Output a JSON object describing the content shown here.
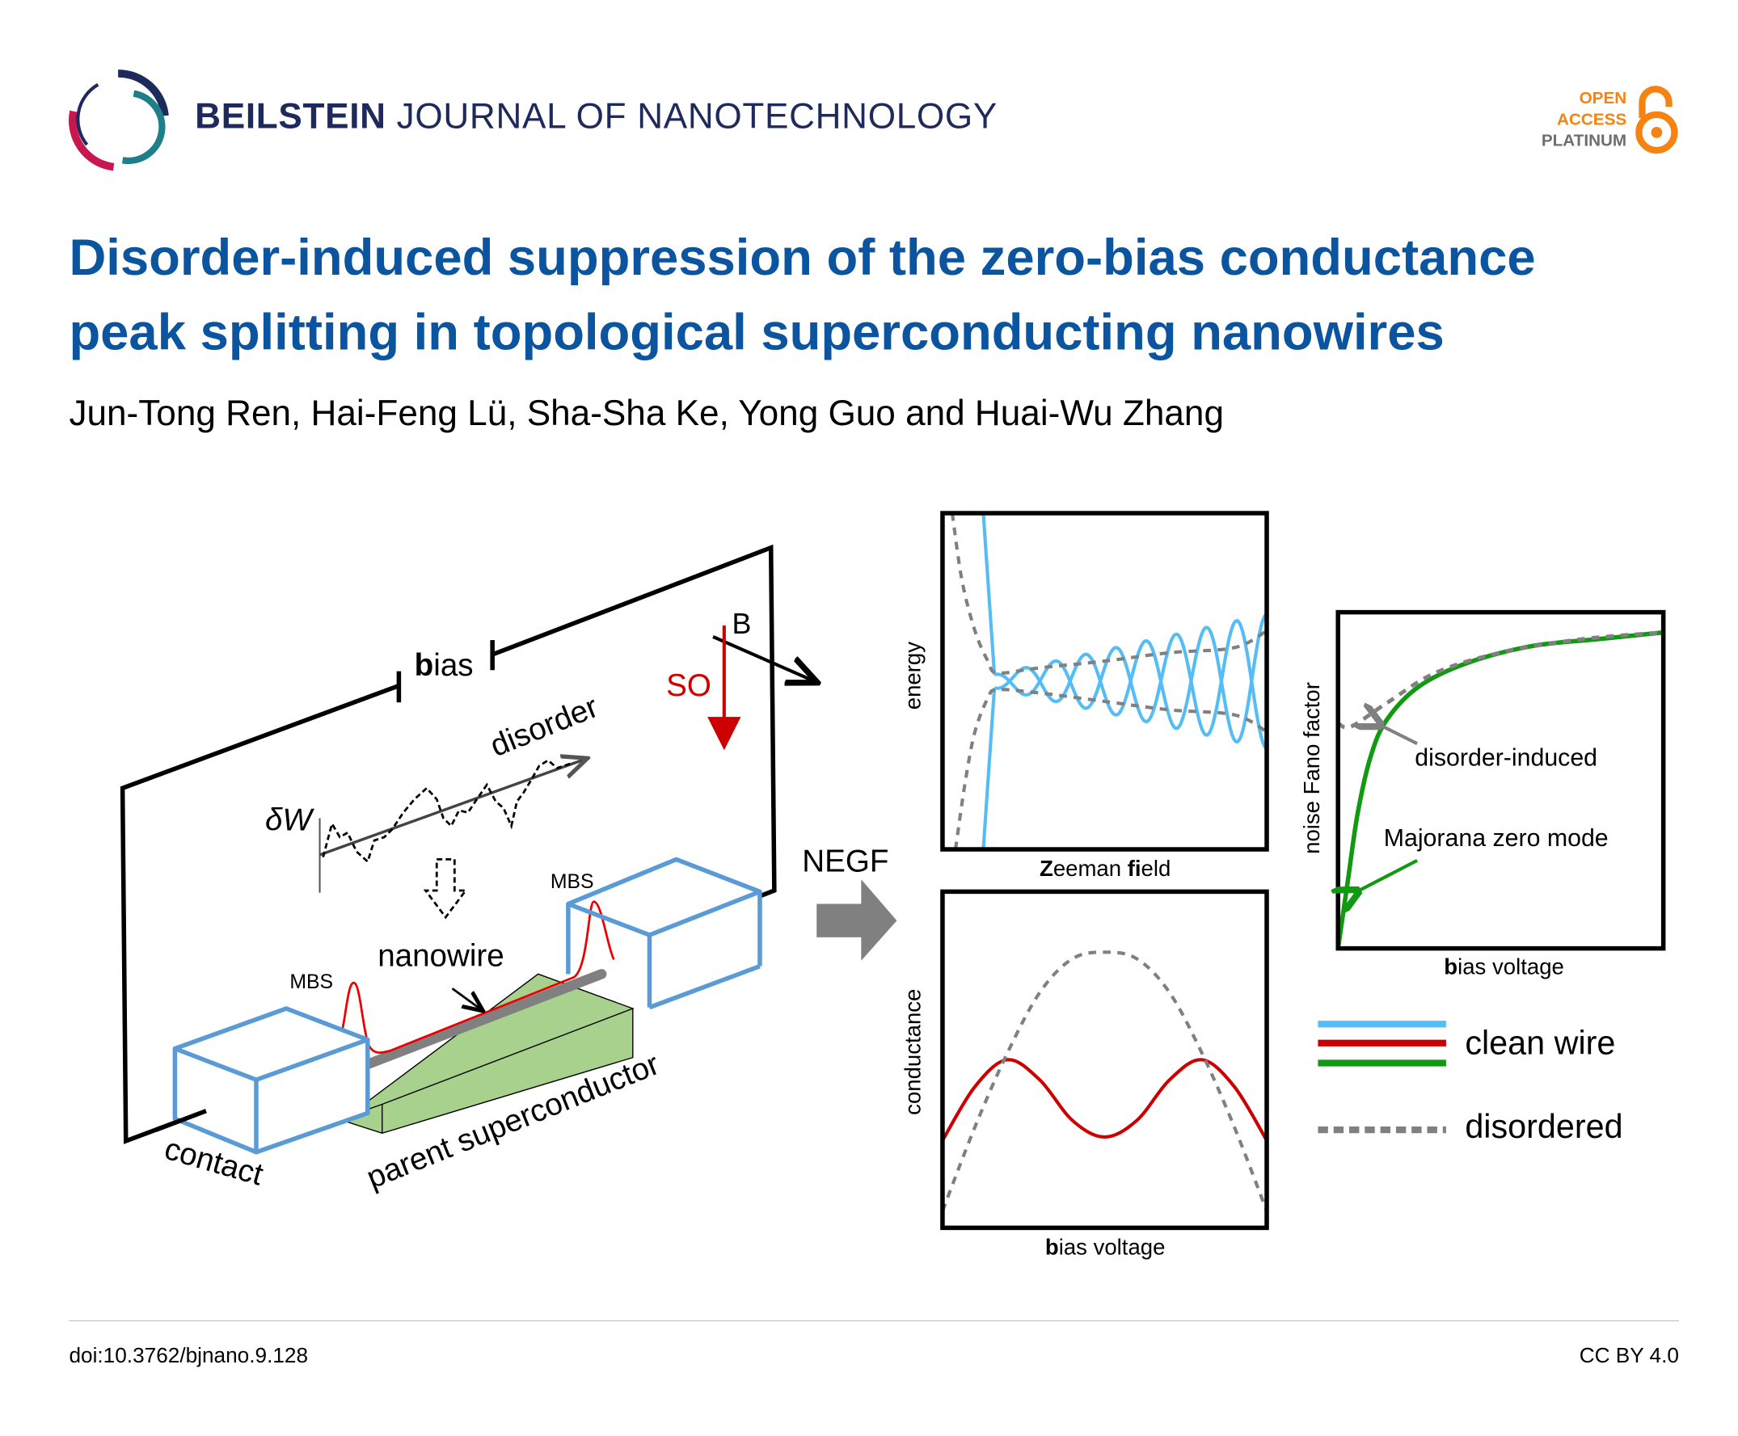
{
  "header": {
    "journal_bold": "BEILSTEIN",
    "journal_rest": " JOURNAL OF NANOTECHNOLOGY",
    "open_access": [
      "OPEN",
      "ACCESS",
      "PLATINUM"
    ]
  },
  "title_lines": [
    "Disorder-induced suppression of the zero-bias conductance",
    "peak splitting in topological superconducting nanowires"
  ],
  "authors": "Jun-Tong Ren, Hai-Feng Lü, Sha-Sha Ke, Yong Guo and Huai-Wu Zhang",
  "figure": {
    "bias_bold": "b",
    "bias_rest": "ias",
    "B": "B",
    "SO": "SO",
    "disorder": "disorder",
    "delta_w": "δW",
    "mbs": "MBS",
    "nanowire": "nanowire",
    "contact": "contact",
    "parent_superconductor": "parent superconductor",
    "negf": "NEGF",
    "colors": {
      "clean_blue": "#55bdf5",
      "clean_red": "#cc0000",
      "clean_green": "#119911",
      "disordered": "#808080",
      "contact_box": "#5b9bd5",
      "superconductor": "#a9d18e"
    }
  },
  "chart_data": [
    {
      "type": "line",
      "title": "",
      "xlabel_bold": "Z",
      "xlabel_rest": "eeman ",
      "xlabel_bold2": "fi",
      "xlabel_rest2": "eld",
      "ylabel": "energy",
      "xlim": [
        0,
        1
      ],
      "ylim": [
        -1,
        1
      ],
      "series": [
        {
          "name": "clean wire",
          "model": "oscillating",
          "onset": 0.16,
          "amplitude_start": 0.04,
          "amplitude_end": 0.4,
          "half_periods": 9,
          "pre_onset_x": [
            0.124,
            0.16
          ]
        },
        {
          "name": "disordered upper",
          "x": [
            0.03,
            0.06,
            0.1,
            0.14,
            0.17,
            0.3,
            0.5,
            0.7,
            0.9,
            1
          ],
          "y": [
            1,
            0.6,
            0.3,
            0.12,
            0.05,
            0.08,
            0.12,
            0.17,
            0.2,
            0.3
          ]
        },
        {
          "name": "disordered lower",
          "x": [
            0.04,
            0.07,
            0.1,
            0.14,
            0.17,
            0.3,
            0.5,
            0.7,
            0.9,
            1
          ],
          "y": [
            -1,
            -0.6,
            -0.3,
            -0.1,
            -0.05,
            -0.07,
            -0.12,
            -0.17,
            -0.2,
            -0.3
          ]
        }
      ]
    },
    {
      "type": "line",
      "xlabel_bold": "b",
      "xlabel_rest": "ias voltage",
      "ylabel": "conductance",
      "xlim": [
        -1,
        1
      ],
      "ylim": [
        0,
        1
      ],
      "x": [
        -1,
        -0.8,
        -0.6,
        -0.4,
        -0.2,
        0,
        0.2,
        0.4,
        0.6,
        0.8,
        1
      ],
      "series": [
        {
          "name": "clean wire",
          "values": [
            0.26,
            0.42,
            0.5,
            0.44,
            0.32,
            0.27,
            0.32,
            0.44,
            0.5,
            0.42,
            0.26
          ]
        },
        {
          "name": "disordered",
          "values": [
            0.05,
            0.3,
            0.52,
            0.7,
            0.8,
            0.82,
            0.8,
            0.7,
            0.52,
            0.3,
            0.05
          ]
        }
      ]
    },
    {
      "type": "line",
      "xlabel_bold": "b",
      "xlabel_rest": "ias voltage",
      "ylabel": "noise Fano factor",
      "xlim": [
        0,
        1
      ],
      "ylim": [
        0,
        1
      ],
      "series": [
        {
          "name": "clean wire",
          "x": [
            0,
            0.03,
            0.06,
            0.1,
            0.15,
            0.25,
            0.4,
            0.6,
            0.8,
            1
          ],
          "values": [
            0,
            0.2,
            0.4,
            0.57,
            0.68,
            0.78,
            0.85,
            0.9,
            0.92,
            0.94
          ]
        },
        {
          "name": "disordered",
          "x": [
            0,
            0.04,
            0.15,
            0.3,
            0.5,
            0.75,
            1
          ],
          "values": [
            0.67,
            0.66,
            0.73,
            0.82,
            0.88,
            0.92,
            0.94
          ]
        }
      ],
      "annotations": [
        "disorder-induced",
        "Majorana zero mode"
      ]
    }
  ],
  "legend": {
    "clean": "clean wire",
    "disordered": "disordered",
    "position": "bottom-right"
  },
  "footer": {
    "doi": "doi:10.3762/bjnano.9.128",
    "license": "CC BY 4.0"
  }
}
